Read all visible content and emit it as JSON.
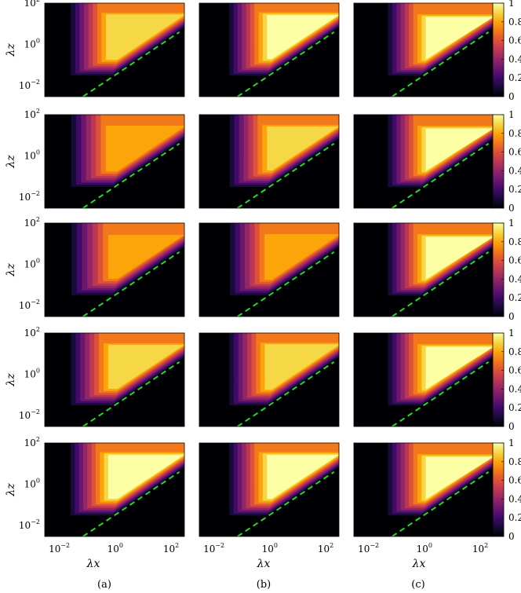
{
  "figure": {
    "panel_labels": [
      "(a)",
      "(b)",
      "(c)"
    ],
    "x_axis_label": "λx",
    "y_axis_label": "λz",
    "colorbar_ticks": [
      "0",
      "0.2",
      "0.4",
      "0.6",
      "0.8",
      "1"
    ]
  },
  "chart_data": {
    "type": "heatmap",
    "layout": "5 rows × 3 columns of contour maps, one colorbar per row",
    "xlabel": "λx",
    "ylabel": "λz",
    "x_scale": "log",
    "y_scale": "log",
    "xlim": [
      0.003,
      300
    ],
    "ylim": [
      0.003,
      100
    ],
    "x_ticks": [
      "10^-2",
      "10^0",
      "10^2"
    ],
    "y_ticks": [
      "10^-2",
      "10^0",
      "10^2"
    ],
    "colorbar": {
      "range": [
        0,
        1
      ],
      "ticks": [
        0,
        0.2,
        0.4,
        0.6,
        0.8,
        1
      ],
      "colormap": "inferno-like (black–purple–orange–yellow)"
    },
    "reference_line": {
      "style": "dashed",
      "color": "#22dd22",
      "relation": "λz ∝ λx",
      "approx_points": [
        [
          0.07,
          0.003
        ],
        [
          200,
          4
        ]
      ]
    },
    "columns": [
      "(a)",
      "(b)",
      "(c)"
    ],
    "peak_levels": [
      [
        0.95,
        1.0,
        1.0
      ],
      [
        0.85,
        0.9,
        1.0
      ],
      [
        0.8,
        0.85,
        1.0
      ],
      [
        0.9,
        0.95,
        1.0
      ],
      [
        1.0,
        1.0,
        1.0
      ]
    ]
  }
}
